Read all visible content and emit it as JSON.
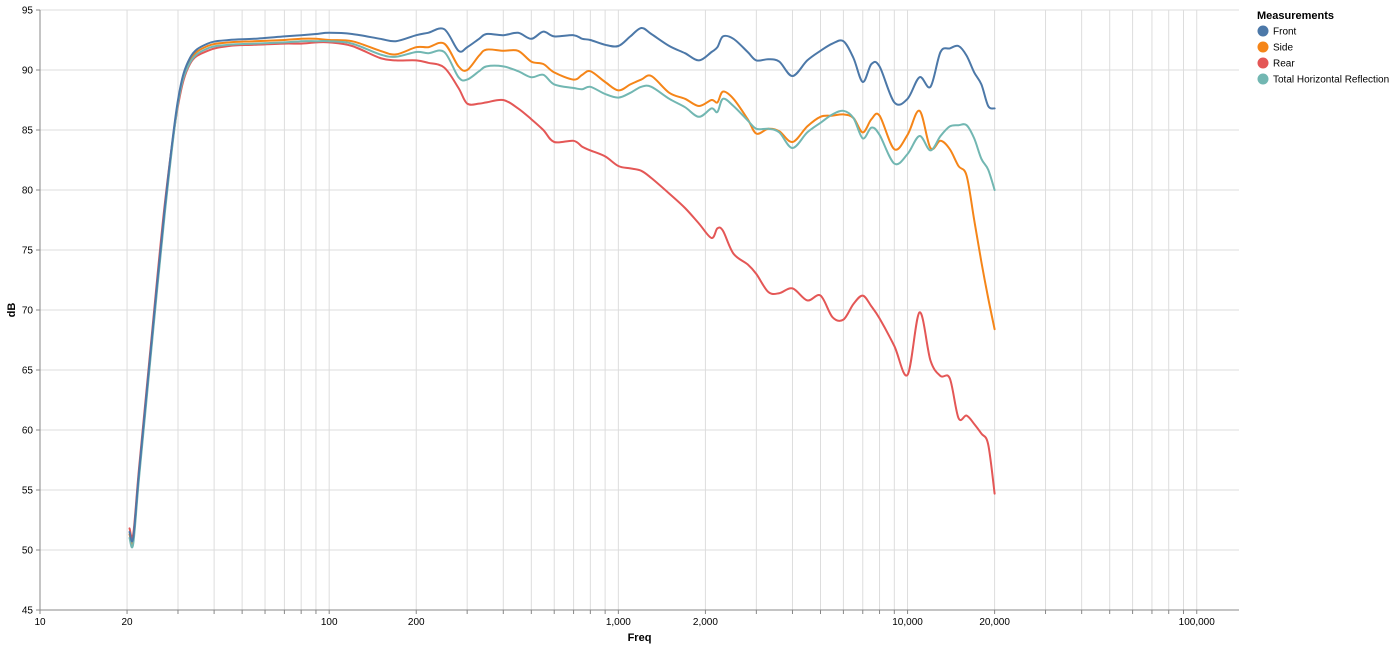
{
  "chart_data": {
    "type": "line",
    "xlabel": "Freq",
    "ylabel": "dB",
    "x_scale": "log",
    "xlim": [
      10,
      140000
    ],
    "ylim": [
      45,
      95
    ],
    "grid": true,
    "x_ticks": [
      10,
      20,
      100,
      200,
      1000,
      2000,
      10000,
      20000,
      100000
    ],
    "x_tick_labels": [
      "10",
      "20",
      "100",
      "200",
      "1,000",
      "2,000",
      "10,000",
      "20,000",
      "100,000"
    ],
    "y_ticks": [
      45,
      50,
      55,
      60,
      65,
      70,
      75,
      80,
      85,
      90,
      95
    ],
    "y_tick_labels": [
      "45",
      "50",
      "55",
      "60",
      "65",
      "70",
      "75",
      "80",
      "85",
      "90",
      "95"
    ],
    "legend": {
      "title": "Measurements",
      "placement": "top-right",
      "entries": [
        "Front",
        "Side",
        "Rear",
        "Total Horizontal Reflection"
      ]
    },
    "series": [
      {
        "name": "Front",
        "color": "#4c78a8",
        "x": [
          20.4,
          21,
          22,
          24,
          27,
          30,
          33,
          38,
          45,
          55,
          70,
          80,
          90,
          100,
          120,
          150,
          170,
          200,
          220,
          250,
          280,
          300,
          330,
          350,
          400,
          450,
          500,
          550,
          600,
          700,
          750,
          800,
          900,
          1000,
          1100,
          1200,
          1300,
          1500,
          1700,
          1900,
          2100,
          2200,
          2300,
          2500,
          2800,
          3000,
          3300,
          3600,
          4000,
          4500,
          5000,
          5500,
          6000,
          6500,
          7000,
          7500,
          8000,
          9000,
          10000,
          11000,
          12000,
          13000,
          14000,
          15000,
          16000,
          17000,
          18000,
          19000,
          20000
        ],
        "y": [
          51.5,
          51.0,
          56.5,
          66.0,
          78.5,
          87.5,
          91.0,
          92.2,
          92.5,
          92.6,
          92.8,
          92.9,
          93.0,
          93.1,
          93.0,
          92.6,
          92.4,
          92.9,
          93.1,
          93.4,
          91.6,
          91.9,
          92.6,
          93.0,
          92.9,
          93.1,
          92.6,
          93.2,
          92.8,
          92.9,
          92.6,
          92.5,
          92.1,
          92.0,
          92.8,
          93.5,
          93.0,
          92.0,
          91.4,
          90.8,
          91.5,
          91.9,
          92.8,
          92.6,
          91.5,
          90.8,
          90.9,
          90.7,
          89.5,
          90.8,
          91.6,
          92.2,
          92.4,
          91.0,
          89.0,
          90.5,
          90.3,
          87.3,
          87.6,
          89.4,
          88.6,
          91.5,
          91.8,
          92.0,
          91.2,
          89.8,
          88.8,
          87.0,
          86.8
        ]
      },
      {
        "name": "Side",
        "color": "#f58518",
        "x": [
          20.4,
          21,
          22,
          24,
          27,
          30,
          33,
          38,
          45,
          55,
          70,
          80,
          90,
          100,
          120,
          150,
          170,
          200,
          220,
          250,
          280,
          300,
          330,
          350,
          400,
          450,
          500,
          550,
          600,
          700,
          750,
          800,
          900,
          1000,
          1100,
          1200,
          1300,
          1500,
          1700,
          1900,
          2100,
          2200,
          2300,
          2500,
          2800,
          3000,
          3300,
          3600,
          4000,
          4500,
          5000,
          5500,
          6000,
          6500,
          7000,
          7500,
          8000,
          9000,
          10000,
          11000,
          12000,
          13000,
          14000,
          15000,
          16000,
          17000,
          18000,
          19000,
          20000
        ],
        "y": [
          51.3,
          50.8,
          56.3,
          65.8,
          78.3,
          87.3,
          90.8,
          92.0,
          92.3,
          92.4,
          92.5,
          92.6,
          92.6,
          92.5,
          92.4,
          91.6,
          91.3,
          91.9,
          91.9,
          92.2,
          90.3,
          90.0,
          91.2,
          91.7,
          91.6,
          91.6,
          90.7,
          90.5,
          89.8,
          89.2,
          89.6,
          89.9,
          89.0,
          88.3,
          88.8,
          89.2,
          89.5,
          88.1,
          87.6,
          87.0,
          87.5,
          87.3,
          88.2,
          87.6,
          85.9,
          84.7,
          85.1,
          84.9,
          84.0,
          85.3,
          86.1,
          86.2,
          86.3,
          86.0,
          84.8,
          85.9,
          86.2,
          83.4,
          84.6,
          86.6,
          83.5,
          84.1,
          83.4,
          82.0,
          81.2,
          77.5,
          74.0,
          71.0,
          68.4
        ]
      },
      {
        "name": "Rear",
        "color": "#e45756",
        "x": [
          20.4,
          21,
          22,
          24,
          27,
          30,
          33,
          38,
          45,
          55,
          70,
          80,
          90,
          100,
          120,
          150,
          170,
          200,
          220,
          250,
          280,
          300,
          330,
          350,
          400,
          450,
          500,
          550,
          600,
          700,
          750,
          800,
          900,
          1000,
          1100,
          1200,
          1300,
          1500,
          1700,
          1900,
          2100,
          2200,
          2300,
          2500,
          2800,
          3000,
          3300,
          3600,
          4000,
          4500,
          5000,
          5500,
          6000,
          6500,
          7000,
          7500,
          8000,
          9000,
          10000,
          11000,
          12000,
          13000,
          14000,
          15000,
          16000,
          17000,
          18000,
          19000,
          20000
        ],
        "y": [
          51.8,
          51.3,
          56.8,
          66.3,
          78.8,
          87.0,
          90.5,
          91.6,
          92.0,
          92.1,
          92.2,
          92.2,
          92.3,
          92.3,
          92.0,
          91.0,
          90.8,
          90.8,
          90.6,
          90.2,
          88.5,
          87.2,
          87.2,
          87.3,
          87.5,
          86.8,
          85.9,
          85.0,
          84.0,
          84.1,
          83.6,
          83.3,
          82.8,
          82.0,
          81.8,
          81.6,
          81.0,
          79.7,
          78.5,
          77.2,
          76.0,
          76.8,
          76.6,
          74.7,
          73.8,
          73.0,
          71.5,
          71.4,
          71.8,
          70.8,
          71.2,
          69.4,
          69.2,
          70.5,
          71.2,
          70.3,
          69.3,
          67.0,
          64.6,
          69.8,
          65.8,
          64.5,
          64.3,
          61.0,
          61.2,
          60.5,
          59.7,
          58.8,
          54.7
        ]
      },
      {
        "name": "Total Horizontal Reflection",
        "color": "#72b7b2",
        "x": [
          20.4,
          21,
          22,
          24,
          27,
          30,
          33,
          38,
          45,
          55,
          70,
          80,
          90,
          100,
          120,
          150,
          170,
          200,
          220,
          250,
          280,
          300,
          330,
          350,
          400,
          450,
          500,
          550,
          600,
          700,
          750,
          800,
          900,
          1000,
          1100,
          1200,
          1300,
          1500,
          1700,
          1900,
          2100,
          2200,
          2300,
          2500,
          2800,
          3000,
          3300,
          3600,
          4000,
          4500,
          5000,
          5500,
          6000,
          6500,
          7000,
          7500,
          8000,
          9000,
          10000,
          11000,
          12000,
          13000,
          14000,
          15000,
          16000,
          17000,
          18000,
          19000,
          20000
        ],
        "y": [
          51.0,
          50.5,
          56.0,
          65.5,
          78.0,
          87.2,
          90.6,
          91.8,
          92.1,
          92.2,
          92.3,
          92.4,
          92.4,
          92.4,
          92.2,
          91.3,
          91.1,
          91.5,
          91.4,
          91.5,
          89.4,
          89.2,
          89.9,
          90.3,
          90.3,
          89.9,
          89.4,
          89.6,
          88.8,
          88.5,
          88.4,
          88.6,
          88.0,
          87.7,
          88.1,
          88.6,
          88.6,
          87.6,
          86.9,
          86.1,
          86.8,
          86.5,
          87.6,
          87.0,
          85.8,
          85.1,
          85.1,
          84.8,
          83.5,
          84.8,
          85.6,
          86.3,
          86.6,
          86.0,
          84.3,
          85.2,
          84.6,
          82.2,
          83.0,
          84.5,
          83.3,
          84.5,
          85.3,
          85.4,
          85.4,
          84.3,
          82.6,
          81.7,
          80.0
        ]
      }
    ]
  }
}
